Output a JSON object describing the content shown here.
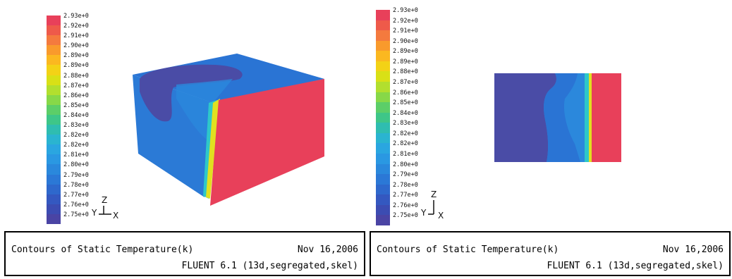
{
  "chart_data": [
    {
      "type": "heatmap",
      "view": "3d-box",
      "color_scale": {
        "labels": [
          "2.93e+0",
          "2.92e+0",
          "2.91e+0",
          "2.90e+0",
          "2.89e+0",
          "2.89e+0",
          "2.88e+0",
          "2.87e+0",
          "2.86e+0",
          "2.85e+0",
          "2.84e+0",
          "2.83e+0",
          "2.82e+0",
          "2.82e+0",
          "2.81e+0",
          "2.80e+0",
          "2.79e+0",
          "2.78e+0",
          "2.77e+0",
          "2.76e+0",
          "2.75e+0"
        ],
        "colors": [
          "#e8405a",
          "#ee5a4a",
          "#f47a3e",
          "#f99a2c",
          "#fbb820",
          "#f3d216",
          "#d9e016",
          "#b2df2e",
          "#87d848",
          "#5cce68",
          "#3ec688",
          "#2fbdb0",
          "#2ab4d0",
          "#2aa6e0",
          "#2a98e2",
          "#2a88dc",
          "#2b78d6",
          "#2e68cc",
          "#3458c0",
          "#3c4cb2",
          "#4a44a4"
        ]
      },
      "axes_triad": {
        "up": "Z",
        "left": "Y",
        "right": "X"
      },
      "caption": {
        "title": "Contours of Static Temperature(k)",
        "date": "Nov 16,2006",
        "software": "FLUENT 6.1 (13d,segregated,skel)"
      }
    },
    {
      "type": "heatmap",
      "view": "2d-plane",
      "color_scale": {
        "labels": [
          "2.93e+0",
          "2.92e+0",
          "2.91e+0",
          "2.90e+0",
          "2.89e+0",
          "2.89e+0",
          "2.88e+0",
          "2.87e+0",
          "2.86e+0",
          "2.85e+0",
          "2.84e+0",
          "2.83e+0",
          "2.82e+0",
          "2.82e+0",
          "2.81e+0",
          "2.80e+0",
          "2.79e+0",
          "2.78e+0",
          "2.77e+0",
          "2.76e+0",
          "2.75e+0"
        ],
        "colors": [
          "#e8405a",
          "#ee5a4a",
          "#f47a3e",
          "#f99a2c",
          "#fbb820",
          "#f3d216",
          "#d9e016",
          "#b2df2e",
          "#87d848",
          "#5cce68",
          "#3ec688",
          "#2fbdb0",
          "#2ab4d0",
          "#2aa6e0",
          "#2a98e2",
          "#2a88dc",
          "#2b78d6",
          "#2e68cc",
          "#3458c0",
          "#3c4cb2",
          "#4a44a4"
        ]
      },
      "axes_triad": {
        "up": "Z",
        "left": "Y",
        "right": "X"
      },
      "caption": {
        "title": "Contours of Static Temperature(k)",
        "date": "Nov 16,2006",
        "software": "FLUENT 6.1 (13d,segregated,skel)"
      }
    }
  ],
  "colors": {
    "hot": "#e8405a",
    "cold_dark": "#4a4ca6",
    "cold": "#2a74d4",
    "mid_blue": "#2b88dc",
    "interface_yellow": "#e0e020",
    "interface_cyan": "#2ec8c8"
  }
}
